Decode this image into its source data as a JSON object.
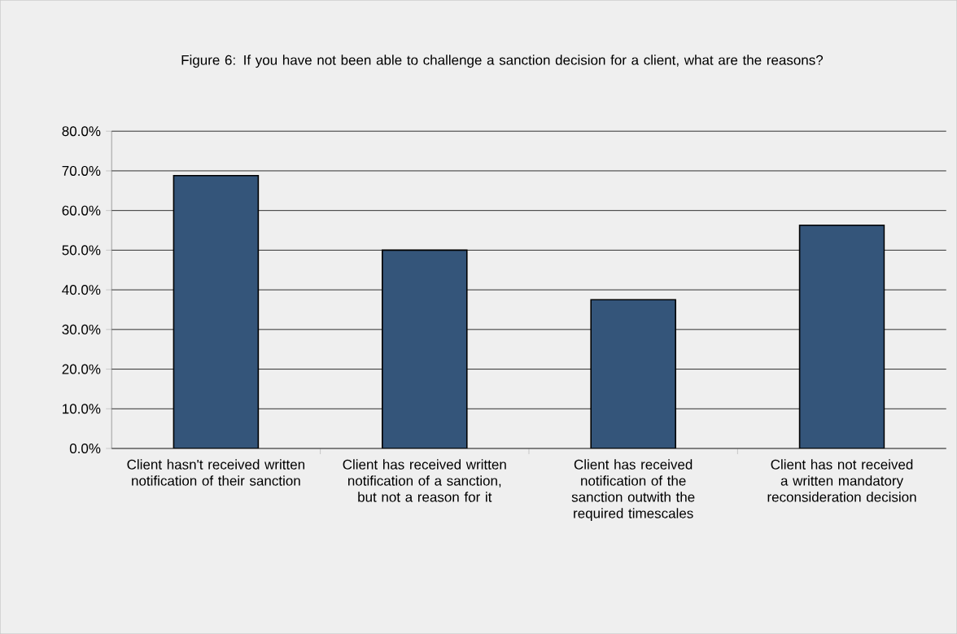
{
  "chart_data": {
    "type": "bar",
    "title": "Figure 6: If you have not been able to challenge a sanction decision for a client, what are the reasons?",
    "categories": [
      "Client hasn't received written notification of their sanction",
      "Client has received written notification of a sanction, but not a reason for it",
      "Client has received notification of the sanction outwith the required timescales",
      "Client has not received a written mandatory reconsideration decision"
    ],
    "values": [
      68.8,
      50.0,
      37.5,
      56.3
    ],
    "color": "#34557a",
    "ylim": [
      0,
      80
    ],
    "yticks": [
      {
        "value": 0,
        "label": "0.0%"
      },
      {
        "value": 10,
        "label": "10.0%"
      },
      {
        "value": 20,
        "label": "20.0%"
      },
      {
        "value": 30,
        "label": "30.0%"
      },
      {
        "value": 40,
        "label": "40.0%"
      },
      {
        "value": 50,
        "label": "50.0%"
      },
      {
        "value": 60,
        "label": "60.0%"
      },
      {
        "value": 70,
        "label": "70.0%"
      },
      {
        "value": 80,
        "label": "80.0%"
      }
    ],
    "grid": "y"
  }
}
